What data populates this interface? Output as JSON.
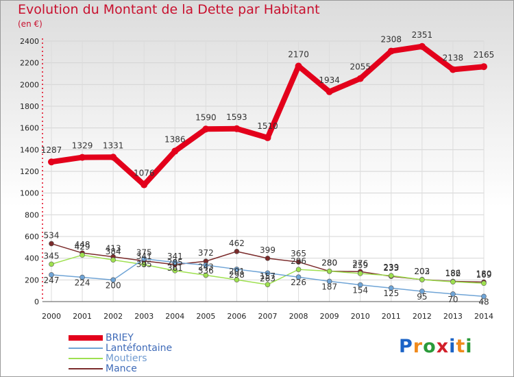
{
  "chart_data": {
    "type": "line",
    "title": "Evolution du Montant de la Dette par Habitant",
    "subtitle": "(en €)",
    "xlabel": "",
    "ylabel": "",
    "ylim": [
      0,
      2400
    ],
    "yticks": [
      0,
      200,
      400,
      600,
      800,
      1000,
      1200,
      1400,
      1600,
      1800,
      2000,
      2200,
      2400
    ],
    "grid": true,
    "legend_position": "bottom-left",
    "x": [
      "2000",
      "2001",
      "2002",
      "2003",
      "2004",
      "2005",
      "2006",
      "2007",
      "2008",
      "2009",
      "2010",
      "2011",
      "2012",
      "2013",
      "2014"
    ],
    "series": [
      {
        "name": "BRIEY",
        "color": "#e3001b",
        "values": [
          1287,
          1329,
          1331,
          1076,
          1386,
          1590,
          1593,
          1510,
          2170,
          1934,
          2055,
          2308,
          2351,
          2138,
          2165
        ],
        "labels": [
          "1287",
          "1329",
          "1331",
          "1076",
          "1386",
          "1590",
          "1593",
          "1510",
          "2170",
          "1934",
          "2055",
          "2308",
          "2351",
          "2138",
          "2165"
        ]
      },
      {
        "name": "Lantéfontaine",
        "color": "#6fa4d6",
        "values": [
          247,
          224,
          200,
          395,
          361,
          336,
          298,
          263,
          226,
          187,
          154,
          125,
          95,
          70,
          48
        ],
        "labels": [
          "247",
          "224",
          "200",
          "395",
          "361",
          "336",
          "298",
          "263",
          "226",
          "187",
          "154",
          "125",
          "95",
          "70",
          "48"
        ]
      },
      {
        "name": "Moutiers",
        "color": "#9ee04f",
        "values": [
          345,
          429,
          384,
          341,
          285,
          243,
          201,
          157,
          296,
          280,
          259,
          239,
          202,
          182,
          169
        ],
        "labels": [
          "345",
          "429",
          "384",
          "341",
          "285",
          "243",
          "201",
          "157",
          "296",
          "280",
          "259",
          "239",
          "202",
          "182",
          "169"
        ]
      },
      {
        "name": "Mance",
        "color": "#7a2a2a",
        "values": [
          534,
          448,
          413,
          375,
          341,
          372,
          462,
          399,
          365,
          280,
          276,
          233,
          203,
          186,
          180
        ],
        "labels": [
          "534",
          "448",
          "413",
          "375",
          "341",
          "372",
          "462",
          "399",
          "365",
          "280",
          "276",
          "233",
          "203",
          "186",
          "180"
        ]
      }
    ]
  },
  "logo": {
    "letters": [
      "P",
      "r",
      "o",
      "x",
      "i",
      "t",
      "i"
    ],
    "colors": [
      "#1b63c6",
      "#f08a1c",
      "#2a9a3a",
      "#d21f2a",
      "#1b63c6",
      "#f08a1c",
      "#2a9a3a"
    ]
  }
}
